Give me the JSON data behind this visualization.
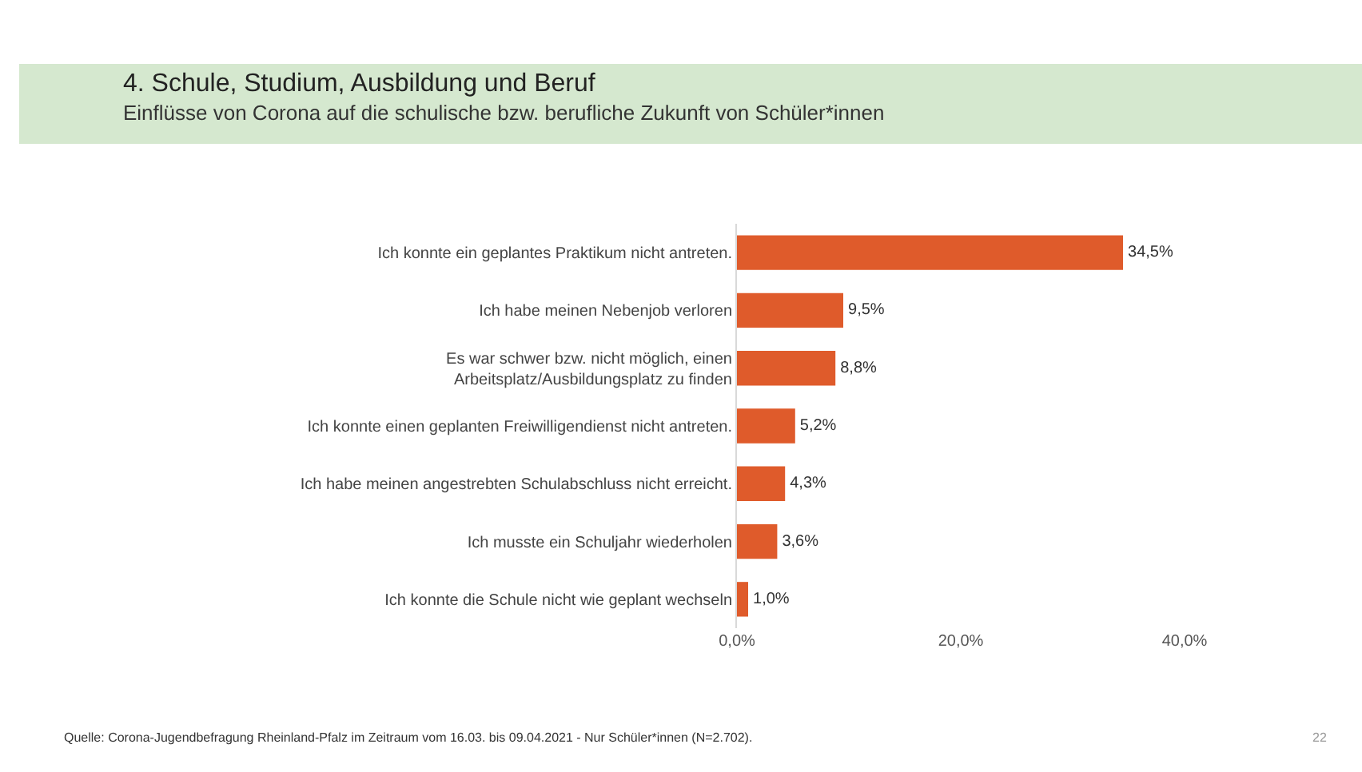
{
  "chart_data": {
    "type": "bar",
    "orientation": "horizontal",
    "title": "4. Schule, Studium, Ausbildung und Beruf",
    "subtitle": "Einflüsse von Corona auf die schulische bzw. berufliche Zukunft von Schüler*innen",
    "categories": [
      "Ich konnte ein geplantes Praktikum nicht antreten.",
      "Ich habe meinen Nebenjob verloren",
      "Es war schwer bzw. nicht möglich, einen\nArbeitsplatz/Ausbildungsplatz zu finden",
      "Ich konnte einen geplanten Freiwilligendienst nicht antreten.",
      "Ich habe meinen angestrebten Schulabschluss nicht erreicht.",
      "Ich musste ein Schuljahr wiederholen",
      "Ich konnte die Schule nicht wie geplant wechseln"
    ],
    "values": [
      34.5,
      9.5,
      8.8,
      5.2,
      4.3,
      3.6,
      1.0
    ],
    "value_labels": [
      "34,5%",
      "9,5%",
      "8,8%",
      "5,2%",
      "4,3%",
      "3,6%",
      "1,0%"
    ],
    "color": "#df5b2b",
    "xlim": [
      0,
      40
    ],
    "xticks": [
      {
        "value": 0,
        "label": "0,0%"
      },
      {
        "value": 20,
        "label": "20,0%"
      },
      {
        "value": 40,
        "label": "40,0%"
      }
    ],
    "grid": false,
    "annotations": [
      "Quelle: Corona-Jugendbefragung Rheinland-Pfalz im Zeitraum vom 16.03. bis 09.04.2021 - Nur Schüler*innen (N=2.702).",
      "22"
    ]
  }
}
